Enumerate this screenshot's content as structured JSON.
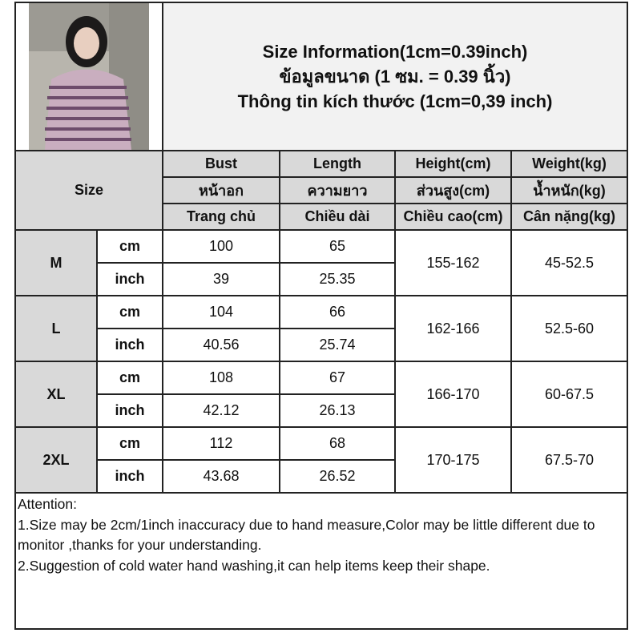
{
  "title_lines": [
    "Size Information(1cm=0.39inch)",
    "ข้อมูลขนาด (1 ซม. = 0.39 นิ้ว)",
    "Thông tin kích thước (1cm=0,39 inch)"
  ],
  "size_header": "Size",
  "columns": [
    {
      "en": "Bust",
      "th": "หน้าอก",
      "vi": "Trang chủ"
    },
    {
      "en": "Length",
      "th": "ความยาว",
      "vi": "Chiều dài"
    },
    {
      "en": "Height(cm)",
      "th": "ส่วนสูง(cm)",
      "vi": "Chiều cao(cm)"
    },
    {
      "en": "Weight(kg)",
      "th": "น้ำหนัก(kg)",
      "vi": "Cân nặng(kg)"
    }
  ],
  "units": {
    "cm": "cm",
    "inch": "inch"
  },
  "rows": [
    {
      "size": "M",
      "cm": {
        "bust": "100",
        "length": "65"
      },
      "inch": {
        "bust": "39",
        "length": "25.35"
      },
      "height": "155-162",
      "weight": "45-52.5"
    },
    {
      "size": "L",
      "cm": {
        "bust": "104",
        "length": "66"
      },
      "inch": {
        "bust": "40.56",
        "length": "25.74"
      },
      "height": "162-166",
      "weight": "52.5-60"
    },
    {
      "size": "XL",
      "cm": {
        "bust": "108",
        "length": "67"
      },
      "inch": {
        "bust": "42.12",
        "length": "26.13"
      },
      "height": "166-170",
      "weight": "60-67.5"
    },
    {
      "size": "2XL",
      "cm": {
        "bust": "112",
        "length": "68"
      },
      "inch": {
        "bust": "43.68",
        "length": "26.52"
      },
      "height": "170-175",
      "weight": "67.5-70"
    }
  ],
  "attention": {
    "heading": "Attention:",
    "note1": "1.Size may be 2cm/1inch inaccuracy due to hand measure,Color may be little different due to monitor ,thanks for your understanding.",
    "note2": "2.Suggestion of cold water hand washing,it can help items keep their shape."
  },
  "colors": {
    "header_bg": "#d9d9d9",
    "title_bg": "#f2f2f2",
    "border": "#222222"
  }
}
